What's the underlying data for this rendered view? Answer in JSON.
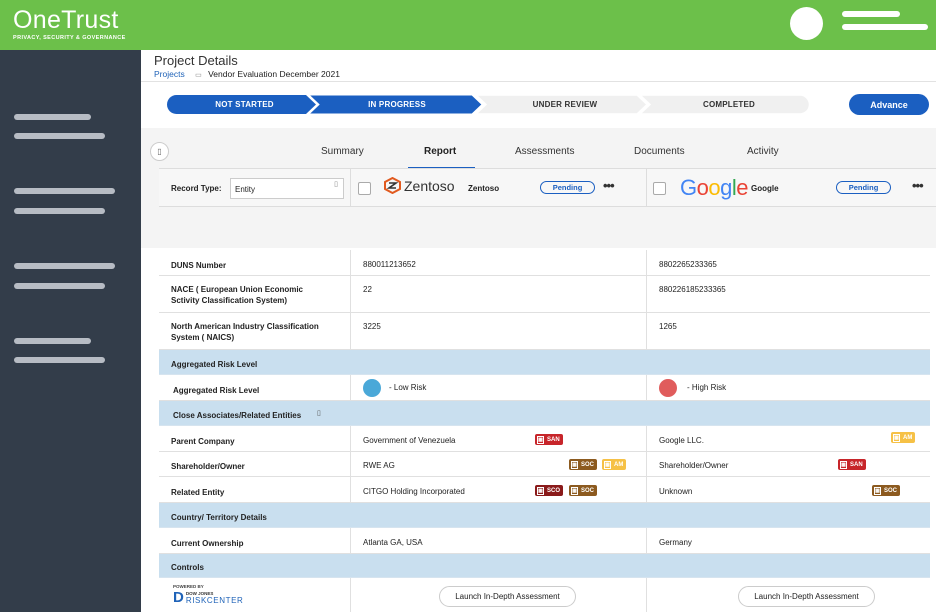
{
  "app": {
    "logo_text": "OneTrust",
    "logo_tagline": "PRIVACY, SECURITY & GOVERNANCE",
    "brand_color": "#6cc04a"
  },
  "header": {
    "title": "Project Details",
    "breadcrumb_root": "Projects",
    "breadcrumb_current": "Vendor Evaluation December 2021"
  },
  "stepper": {
    "steps": [
      "NOT STARTED",
      "IN PROGRESS",
      "UNDER REVIEW",
      "COMPLETED"
    ],
    "current_step": "IN PROGRESS",
    "advance_label": "Advance"
  },
  "tabs": [
    "Summary",
    "Report",
    "Assessments",
    "Documents",
    "Activity"
  ],
  "active_tab": "Report",
  "records": {
    "record_type_label": "Record Type:",
    "record_type_value": "Entity",
    "vendors": [
      {
        "logo_text": "Zentoso",
        "name": "Zentoso",
        "status": "Pending"
      },
      {
        "logo_text": "Google",
        "name": "Google",
        "status": "Pending"
      }
    ]
  },
  "table": {
    "duns": {
      "label": "DUNS Number",
      "v1": "880011213652",
      "v2": "8802265233365"
    },
    "nace": {
      "label": "NACE ( European Union Economic Sctivity Classification System)",
      "v1": "22",
      "v2": "880226185233365"
    },
    "naics": {
      "label": "North American Industry Classification System ( NAICS)",
      "v1": "3225",
      "v2": "1265"
    },
    "agg_section": "Aggregated Risk Level",
    "agg": {
      "label": "Aggregated Risk Level",
      "v1": "- Low Risk",
      "v2": "- High Risk",
      "v1_color": "#4aa8d8",
      "v2_color": "#e05c5c"
    },
    "close_section": "Close Associates/Related Entities",
    "parent": {
      "label": "Parent Company",
      "v1": "Government of Venezuela",
      "v2": "Google LLC.",
      "v1_badges": [
        "SAN"
      ],
      "v2_badges": [
        "AM"
      ]
    },
    "shareholder": {
      "label": "Shareholder/Owner",
      "v1": "RWE AG",
      "v2": "Shareholder/Owner",
      "v1_badges": [
        "SOC",
        "AM"
      ],
      "v2_badges": [
        "SAN"
      ]
    },
    "related": {
      "label": "Related Entity",
      "v1": "CITGO Holding Incorporated",
      "v2": "Unknown",
      "v1_badges": [
        "SCO",
        "SOC"
      ],
      "v2_badges": [
        "SOC"
      ]
    },
    "country_section": "Country/ Territory Details",
    "ownership": {
      "label": "Current Ownership",
      "v1": "Atlanta GA, USA",
      "v2": "Germany"
    },
    "controls_section": "Controls",
    "launch_label": "Launch In-Depth Assessment"
  },
  "powered_by": {
    "prefix": "POWERED BY",
    "brand_top": "DOW JONES",
    "brand_bottom": "RISKCENTER"
  },
  "icons": {
    "calendar": "calendar-icon",
    "caret": "chevron-down-icon",
    "collapse": "collapse-icon",
    "more": "more-icon"
  },
  "colors": {
    "primary": "#1b5fc1",
    "section_bg": "#c9dfef",
    "san": "#c7252a",
    "soc": "#8c5a1f",
    "sco": "#8a1a1a",
    "am": "#f6c146"
  }
}
